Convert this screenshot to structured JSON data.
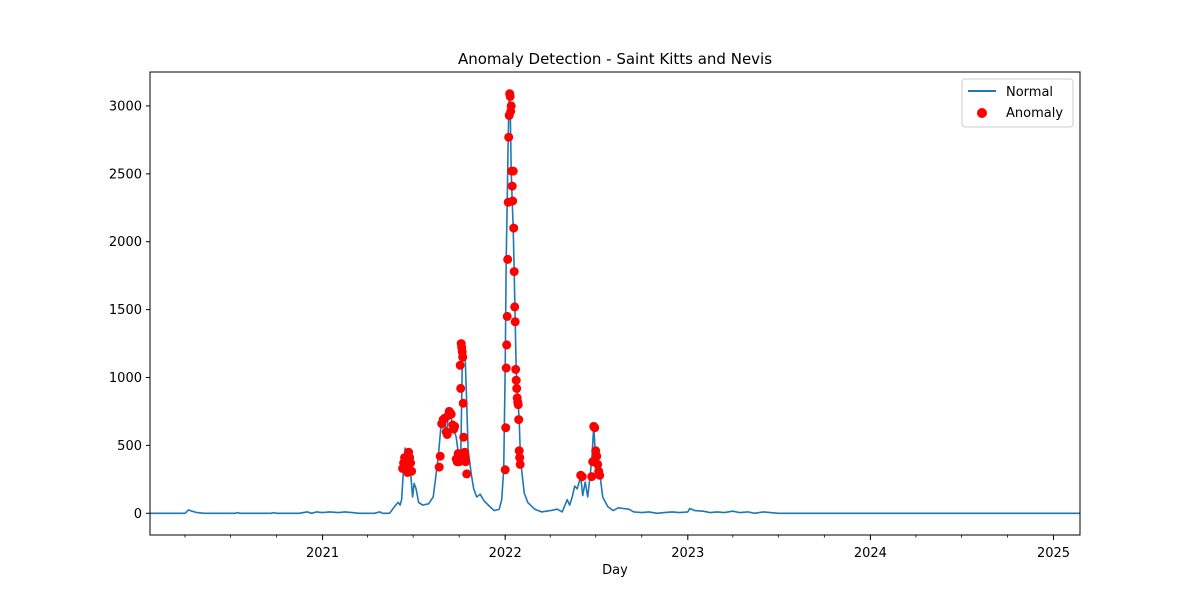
{
  "chart_data": {
    "type": "line",
    "title": "Anomaly Detection - Saint Kitts and Nevis",
    "xlabel": "Day",
    "ylabel": "",
    "xlim": [
      "2020-01-22",
      "2025-02-23"
    ],
    "ylim": [
      -160,
      3250
    ],
    "x_ticks": [
      "2021",
      "2022",
      "2023",
      "2024",
      "2025"
    ],
    "y_ticks": [
      0,
      500,
      1000,
      1500,
      2000,
      2500,
      3000
    ],
    "grid": false,
    "legend": {
      "position": "upper right",
      "entries": [
        "Normal",
        "Anomaly"
      ]
    },
    "colors": {
      "normal": "#1f77b4",
      "anomaly": "#ff0000"
    },
    "series": [
      {
        "name": "Normal",
        "type": "line",
        "points": [
          [
            "2020-01-22",
            0
          ],
          [
            "2020-04-01",
            0
          ],
          [
            "2020-04-08",
            25
          ],
          [
            "2020-04-15",
            15
          ],
          [
            "2020-04-25",
            5
          ],
          [
            "2020-05-10",
            0
          ],
          [
            "2020-07-10",
            0
          ],
          [
            "2020-07-15",
            5
          ],
          [
            "2020-07-20",
            0
          ],
          [
            "2020-09-20",
            0
          ],
          [
            "2020-09-25",
            5
          ],
          [
            "2020-10-01",
            0
          ],
          [
            "2020-11-15",
            0
          ],
          [
            "2020-12-01",
            10
          ],
          [
            "2020-12-10",
            0
          ],
          [
            "2020-12-20",
            10
          ],
          [
            "2021-01-01",
            5
          ],
          [
            "2021-01-15",
            10
          ],
          [
            "2021-02-01",
            5
          ],
          [
            "2021-02-15",
            10
          ],
          [
            "2021-03-01",
            5
          ],
          [
            "2021-03-15",
            0
          ],
          [
            "2021-04-15",
            0
          ],
          [
            "2021-04-25",
            10
          ],
          [
            "2021-05-01",
            0
          ],
          [
            "2021-05-15",
            0
          ],
          [
            "2021-05-25",
            50
          ],
          [
            "2021-06-01",
            80
          ],
          [
            "2021-06-05",
            60
          ],
          [
            "2021-06-08",
            100
          ],
          [
            "2021-06-12",
            330
          ],
          [
            "2021-06-15",
            480
          ],
          [
            "2021-06-18",
            350
          ],
          [
            "2021-06-22",
            460
          ],
          [
            "2021-06-26",
            300
          ],
          [
            "2021-06-30",
            120
          ],
          [
            "2021-07-03",
            220
          ],
          [
            "2021-07-07",
            180
          ],
          [
            "2021-07-12",
            80
          ],
          [
            "2021-07-20",
            60
          ],
          [
            "2021-08-01",
            70
          ],
          [
            "2021-08-10",
            120
          ],
          [
            "2021-08-20",
            410
          ],
          [
            "2021-08-25",
            620
          ],
          [
            "2021-09-01",
            700
          ],
          [
            "2021-09-05",
            580
          ],
          [
            "2021-09-10",
            740
          ],
          [
            "2021-09-15",
            700
          ],
          [
            "2021-09-20",
            620
          ],
          [
            "2021-09-25",
            560
          ],
          [
            "2021-09-30",
            420
          ],
          [
            "2021-10-04",
            380
          ],
          [
            "2021-10-07",
            1080
          ],
          [
            "2021-10-10",
            1250
          ],
          [
            "2021-10-13",
            1150
          ],
          [
            "2021-10-16",
            810
          ],
          [
            "2021-10-19",
            450
          ],
          [
            "2021-10-22",
            380
          ],
          [
            "2021-10-25",
            290
          ],
          [
            "2021-10-30",
            180
          ],
          [
            "2021-11-05",
            120
          ],
          [
            "2021-11-12",
            140
          ],
          [
            "2021-11-20",
            90
          ],
          [
            "2021-12-01",
            50
          ],
          [
            "2021-12-10",
            20
          ],
          [
            "2021-12-20",
            30
          ],
          [
            "2021-12-25",
            100
          ],
          [
            "2021-12-29",
            320
          ],
          [
            "2022-01-01",
            1070
          ],
          [
            "2022-01-03",
            1870
          ],
          [
            "2022-01-05",
            2290
          ],
          [
            "2022-01-07",
            2770
          ],
          [
            "2022-01-09",
            3090
          ],
          [
            "2022-01-11",
            3000
          ],
          [
            "2022-01-13",
            2520
          ],
          [
            "2022-01-15",
            2300
          ],
          [
            "2022-01-17",
            2100
          ],
          [
            "2022-01-19",
            1780
          ],
          [
            "2022-01-21",
            1410
          ],
          [
            "2022-01-23",
            1060
          ],
          [
            "2022-01-25",
            920
          ],
          [
            "2022-01-27",
            800
          ],
          [
            "2022-01-29",
            690
          ],
          [
            "2022-01-31",
            460
          ],
          [
            "2022-02-02",
            350
          ],
          [
            "2022-02-08",
            150
          ],
          [
            "2022-02-15",
            80
          ],
          [
            "2022-03-01",
            30
          ],
          [
            "2022-03-15",
            10
          ],
          [
            "2022-04-01",
            20
          ],
          [
            "2022-04-15",
            30
          ],
          [
            "2022-04-25",
            10
          ],
          [
            "2022-05-05",
            100
          ],
          [
            "2022-05-10",
            60
          ],
          [
            "2022-05-15",
            120
          ],
          [
            "2022-05-20",
            200
          ],
          [
            "2022-05-25",
            180
          ],
          [
            "2022-06-01",
            270
          ],
          [
            "2022-06-05",
            130
          ],
          [
            "2022-06-10",
            230
          ],
          [
            "2022-06-15",
            120
          ],
          [
            "2022-06-20",
            280
          ],
          [
            "2022-06-24",
            440
          ],
          [
            "2022-06-27",
            640
          ],
          [
            "2022-06-30",
            460
          ],
          [
            "2022-07-03",
            380
          ],
          [
            "2022-07-06",
            310
          ],
          [
            "2022-07-10",
            270
          ],
          [
            "2022-07-15",
            120
          ],
          [
            "2022-07-25",
            50
          ],
          [
            "2022-08-05",
            20
          ],
          [
            "2022-08-15",
            40
          ],
          [
            "2022-08-25",
            35
          ],
          [
            "2022-09-05",
            30
          ],
          [
            "2022-09-15",
            10
          ],
          [
            "2022-10-01",
            5
          ],
          [
            "2022-10-15",
            10
          ],
          [
            "2022-11-01",
            0
          ],
          [
            "2022-11-15",
            5
          ],
          [
            "2022-12-01",
            10
          ],
          [
            "2022-12-15",
            5
          ],
          [
            "2023-01-01",
            10
          ],
          [
            "2023-01-05",
            35
          ],
          [
            "2023-01-15",
            20
          ],
          [
            "2023-02-01",
            15
          ],
          [
            "2023-02-15",
            5
          ],
          [
            "2023-03-01",
            10
          ],
          [
            "2023-03-15",
            5
          ],
          [
            "2023-04-01",
            15
          ],
          [
            "2023-04-15",
            5
          ],
          [
            "2023-05-01",
            10
          ],
          [
            "2023-05-15",
            0
          ],
          [
            "2023-06-01",
            10
          ],
          [
            "2023-06-15",
            5
          ],
          [
            "2023-07-01",
            0
          ],
          [
            "2025-02-23",
            0
          ]
        ]
      },
      {
        "name": "Anomaly",
        "type": "scatter",
        "points": [
          [
            "2021-06-10",
            330
          ],
          [
            "2021-06-12",
            370
          ],
          [
            "2021-06-14",
            410
          ],
          [
            "2021-06-16",
            340
          ],
          [
            "2021-06-18",
            380
          ],
          [
            "2021-06-20",
            300
          ],
          [
            "2021-06-22",
            450
          ],
          [
            "2021-06-24",
            410
          ],
          [
            "2021-06-26",
            370
          ],
          [
            "2021-06-28",
            310
          ],
          [
            "2021-08-22",
            340
          ],
          [
            "2021-08-24",
            420
          ],
          [
            "2021-08-27",
            660
          ],
          [
            "2021-08-30",
            690
          ],
          [
            "2021-09-02",
            700
          ],
          [
            "2021-09-05",
            600
          ],
          [
            "2021-09-07",
            580
          ],
          [
            "2021-09-09",
            720
          ],
          [
            "2021-09-11",
            750
          ],
          [
            "2021-09-13",
            740
          ],
          [
            "2021-09-15",
            730
          ],
          [
            "2021-09-18",
            650
          ],
          [
            "2021-09-20",
            620
          ],
          [
            "2021-09-22",
            640
          ],
          [
            "2021-09-25",
            400
          ],
          [
            "2021-09-27",
            380
          ],
          [
            "2021-09-29",
            440
          ],
          [
            "2021-10-01",
            380
          ],
          [
            "2021-10-03",
            1090
          ],
          [
            "2021-10-04",
            920
          ],
          [
            "2021-10-05",
            1250
          ],
          [
            "2021-10-06",
            1220
          ],
          [
            "2021-10-07",
            1190
          ],
          [
            "2021-10-08",
            1150
          ],
          [
            "2021-10-09",
            810
          ],
          [
            "2021-10-10",
            560
          ],
          [
            "2021-10-11",
            440
          ],
          [
            "2021-10-12",
            450
          ],
          [
            "2021-10-13",
            420
          ],
          [
            "2021-10-14",
            380
          ],
          [
            "2021-10-16",
            290
          ],
          [
            "2022-01-01",
            320
          ],
          [
            "2022-01-02",
            630
          ],
          [
            "2022-01-03",
            1070
          ],
          [
            "2022-01-04",
            1240
          ],
          [
            "2022-01-05",
            1450
          ],
          [
            "2022-01-06",
            1870
          ],
          [
            "2022-01-07",
            2290
          ],
          [
            "2022-01-08",
            2770
          ],
          [
            "2022-01-09",
            2930
          ],
          [
            "2022-01-10",
            3090
          ],
          [
            "2022-01-11",
            3070
          ],
          [
            "2022-01-12",
            2960
          ],
          [
            "2022-01-13",
            3000
          ],
          [
            "2022-01-14",
            2520
          ],
          [
            "2022-01-15",
            2410
          ],
          [
            "2022-01-16",
            2300
          ],
          [
            "2022-01-17",
            2520
          ],
          [
            "2022-01-18",
            2100
          ],
          [
            "2022-01-19",
            1780
          ],
          [
            "2022-01-20",
            1520
          ],
          [
            "2022-01-21",
            1410
          ],
          [
            "2022-01-22",
            1060
          ],
          [
            "2022-01-23",
            980
          ],
          [
            "2022-01-24",
            920
          ],
          [
            "2022-01-25",
            850
          ],
          [
            "2022-01-26",
            820
          ],
          [
            "2022-01-27",
            800
          ],
          [
            "2022-01-28",
            690
          ],
          [
            "2022-01-29",
            460
          ],
          [
            "2022-01-30",
            410
          ],
          [
            "2022-01-31",
            360
          ],
          [
            "2022-06-01",
            280
          ],
          [
            "2022-06-04",
            270
          ],
          [
            "2022-06-23",
            270
          ],
          [
            "2022-06-25",
            380
          ],
          [
            "2022-06-27",
            640
          ],
          [
            "2022-06-29",
            630
          ],
          [
            "2022-07-01",
            460
          ],
          [
            "2022-07-03",
            420
          ],
          [
            "2022-07-05",
            360
          ],
          [
            "2022-07-07",
            310
          ],
          [
            "2022-07-09",
            280
          ]
        ]
      }
    ]
  }
}
